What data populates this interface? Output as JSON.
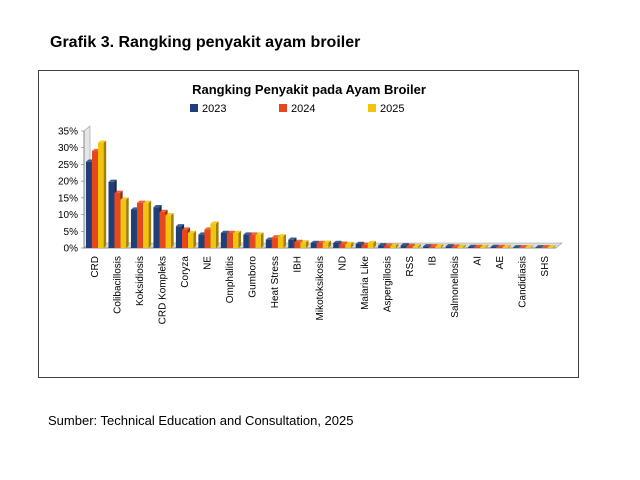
{
  "caption": "Grafik 3. Rangking penyakit ayam broiler",
  "source": "Sumber: Technical Education and Consultation, 2025",
  "chart_data": {
    "type": "bar",
    "title": "Rangking Penyakit pada Ayam Broiler",
    "xlabel": "",
    "ylabel": "",
    "ylim": [
      0,
      35
    ],
    "yticks": [
      "0%",
      "5%",
      "10%",
      "15%",
      "20%",
      "25%",
      "30%",
      "35%"
    ],
    "grid": false,
    "legend_position": "top",
    "categories": [
      "CRD",
      "Colibacillosis",
      "Koksidiosis",
      "CRD Kompleks",
      "Coryza",
      "NE",
      "Omphalitis",
      "Gumboro",
      "Heat Stress",
      "IBH",
      "Mikotoksikosis",
      "ND",
      "Malaria Like",
      "Aspergillosis",
      "RSS",
      "IB",
      "Salmonellosis",
      "AI",
      "AE",
      "Candidiasis",
      "SHS"
    ],
    "series": [
      {
        "name": "2023",
        "color": "#1f3f7a",
        "values": [
          25.8,
          19.8,
          11.5,
          12.2,
          6.5,
          4.0,
          4.5,
          4.0,
          2.5,
          2.5,
          1.5,
          1.5,
          1.2,
          0.8,
          0.8,
          0.5,
          0.5,
          0.3,
          0.3,
          0.2,
          0.2
        ]
      },
      {
        "name": "2024",
        "color": "#e8461c",
        "values": [
          29.0,
          16.5,
          13.5,
          10.8,
          5.5,
          5.5,
          4.5,
          4.0,
          3.2,
          1.8,
          1.5,
          1.3,
          1.0,
          0.7,
          0.6,
          0.5,
          0.4,
          0.3,
          0.3,
          0.2,
          0.2
        ]
      },
      {
        "name": "2025",
        "color": "#f2c40f",
        "values": [
          31.5,
          14.5,
          13.5,
          9.8,
          4.5,
          7.3,
          4.5,
          4.0,
          3.5,
          1.7,
          1.6,
          1.2,
          1.5,
          0.7,
          0.5,
          0.5,
          0.4,
          0.3,
          0.3,
          0.2,
          0.2
        ]
      }
    ]
  }
}
